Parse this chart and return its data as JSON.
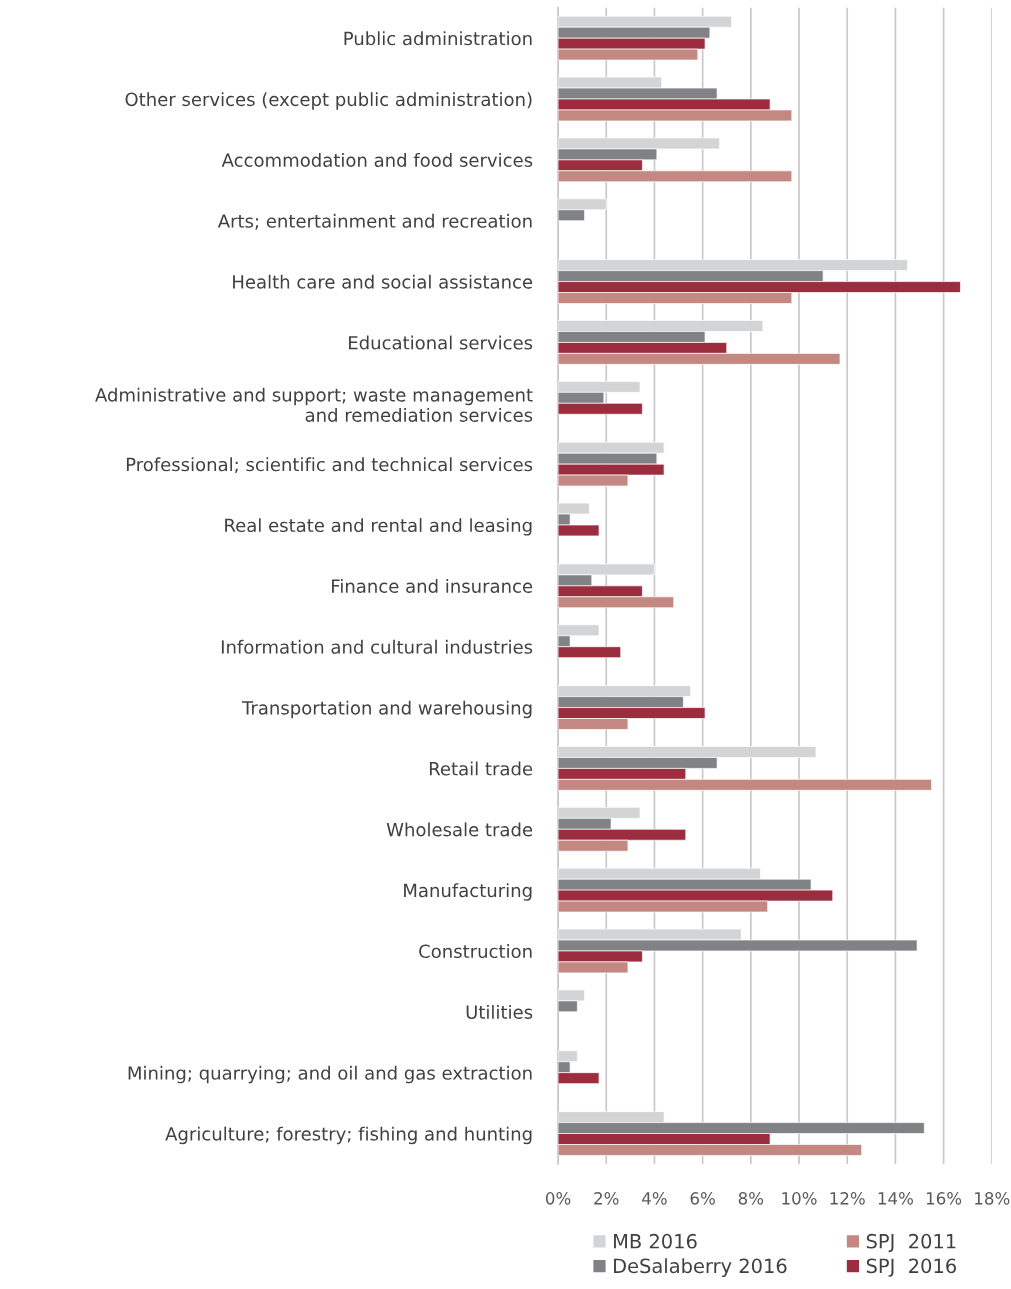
{
  "chart_data": {
    "type": "bar",
    "orientation": "horizontal",
    "categories": [
      "Public administration",
      "Other services (except public administration)",
      "Accommodation and food services",
      "Arts; entertainment and recreation",
      "Health care and social assistance",
      "Educational services",
      "Administrative and support; waste management\nand remediation services",
      "Professional; scientific and technical services",
      "Real estate and rental and leasing",
      "Finance and insurance",
      "Information and cultural industries",
      "Transportation and warehousing",
      "Retail trade",
      "Wholesale trade",
      "Manufacturing",
      "Construction",
      "Utilities",
      "Mining; quarrying; and oil and gas extraction",
      "Agriculture; forestry; fishing and hunting"
    ],
    "series": [
      {
        "name": "MB 2016",
        "color": "#d3d4d6",
        "values": [
          7.2,
          4.3,
          6.7,
          2.0,
          14.5,
          8.5,
          3.4,
          4.4,
          1.3,
          4.0,
          1.7,
          5.5,
          10.7,
          3.4,
          8.4,
          7.6,
          1.1,
          0.8,
          4.4
        ]
      },
      {
        "name": "DeSalaberry 2016",
        "color": "#818286",
        "values": [
          6.3,
          6.6,
          4.1,
          1.1,
          11.0,
          6.1,
          1.9,
          4.1,
          0.5,
          1.4,
          0.5,
          5.2,
          6.6,
          2.2,
          10.5,
          14.9,
          0.8,
          0.5,
          15.2
        ]
      },
      {
        "name": "SPJ  2016",
        "color": "#9b2d3f",
        "values": [
          6.1,
          8.8,
          3.5,
          null,
          16.7,
          7.0,
          3.5,
          4.4,
          1.7,
          3.5,
          2.6,
          6.1,
          5.3,
          5.3,
          11.4,
          3.5,
          null,
          1.7,
          8.8
        ]
      },
      {
        "name": "SPJ  2011",
        "color": "#c48882",
        "values": [
          5.8,
          9.7,
          9.7,
          null,
          9.7,
          11.7,
          null,
          2.9,
          null,
          4.8,
          null,
          2.9,
          15.5,
          2.9,
          8.7,
          2.9,
          null,
          null,
          12.6
        ]
      }
    ],
    "xlim": [
      0,
      18
    ],
    "xticks": [
      {
        "value": 0,
        "label": "0%"
      },
      {
        "value": 2,
        "label": "2%"
      },
      {
        "value": 4,
        "label": "4%"
      },
      {
        "value": 6,
        "label": "6%"
      },
      {
        "value": 8,
        "label": "8%"
      },
      {
        "value": 10,
        "label": "10%"
      },
      {
        "value": 12,
        "label": "12%"
      },
      {
        "value": 14,
        "label": "14%"
      },
      {
        "value": 16,
        "label": "16%"
      },
      {
        "value": 18,
        "label": "18%"
      }
    ],
    "grid": "x",
    "legend": "bottom"
  }
}
